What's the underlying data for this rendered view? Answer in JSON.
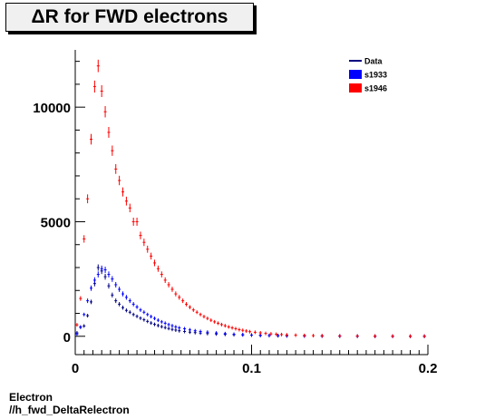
{
  "chart_data": {
    "type": "scatter",
    "title": "ΔR for FWD electrons",
    "xlabel": "",
    "ylabel": "",
    "xlim": [
      0,
      0.2
    ],
    "ylim": [
      -800,
      12500
    ],
    "x_ticks": [
      {
        "value": 0,
        "label": "0"
      },
      {
        "value": 0.1,
        "label": "0.1"
      },
      {
        "value": 0.2,
        "label": "0.2"
      }
    ],
    "y_ticks": [
      {
        "value": 0,
        "label": "0"
      },
      {
        "value": 5000,
        "label": "5000"
      },
      {
        "value": 10000,
        "label": "10000"
      }
    ],
    "legend": {
      "placement": "top-right",
      "entries": [
        {
          "label": "Data",
          "color": "#000080",
          "style": "line"
        },
        {
          "label": "s1933",
          "color": "#0000ff",
          "style": "box"
        },
        {
          "label": "s1946",
          "color": "#ff0000",
          "style": "box"
        }
      ]
    },
    "series": [
      {
        "name": "Data",
        "color": "#000080",
        "points": [
          [
            0.001,
            150
          ],
          [
            0.003,
            400
          ],
          [
            0.005,
            450
          ],
          [
            0.007,
            900
          ],
          [
            0.009,
            1500
          ],
          [
            0.011,
            2300
          ],
          [
            0.013,
            3000
          ],
          [
            0.015,
            2850
          ],
          [
            0.017,
            2600
          ],
          [
            0.019,
            2200
          ],
          [
            0.021,
            1800
          ],
          [
            0.023,
            1550
          ],
          [
            0.025,
            1400
          ],
          [
            0.027,
            1250
          ],
          [
            0.029,
            1130
          ],
          [
            0.031,
            1050
          ],
          [
            0.033,
            950
          ],
          [
            0.035,
            870
          ],
          [
            0.037,
            790
          ],
          [
            0.039,
            720
          ],
          [
            0.041,
            650
          ],
          [
            0.043,
            580
          ],
          [
            0.045,
            520
          ],
          [
            0.047,
            470
          ],
          [
            0.049,
            420
          ],
          [
            0.051,
            380
          ],
          [
            0.053,
            340
          ],
          [
            0.055,
            300
          ],
          [
            0.057,
            270
          ],
          [
            0.059,
            240
          ],
          [
            0.062,
            210
          ],
          [
            0.065,
            180
          ],
          [
            0.068,
            160
          ],
          [
            0.071,
            140
          ],
          [
            0.075,
            120
          ],
          [
            0.08,
            100
          ],
          [
            0.085,
            85
          ],
          [
            0.09,
            70
          ],
          [
            0.095,
            60
          ],
          [
            0.1,
            50
          ],
          [
            0.105,
            40
          ],
          [
            0.11,
            32
          ],
          [
            0.115,
            26
          ],
          [
            0.12,
            20
          ],
          [
            0.13,
            15
          ],
          [
            0.14,
            10
          ],
          [
            0.15,
            8
          ],
          [
            0.16,
            6
          ],
          [
            0.17,
            4
          ],
          [
            0.18,
            3
          ],
          [
            0.19,
            2
          ],
          [
            0.198,
            2
          ]
        ]
      },
      {
        "name": "s1933",
        "color": "#0000ff",
        "points": [
          [
            0.001,
            100
          ],
          [
            0.003,
            400
          ],
          [
            0.005,
            950
          ],
          [
            0.007,
            1550
          ],
          [
            0.009,
            2100
          ],
          [
            0.011,
            2450
          ],
          [
            0.013,
            2700
          ],
          [
            0.015,
            2950
          ],
          [
            0.017,
            2900
          ],
          [
            0.019,
            2700
          ],
          [
            0.021,
            2500
          ],
          [
            0.023,
            2250
          ],
          [
            0.025,
            2050
          ],
          [
            0.027,
            1850
          ],
          [
            0.029,
            1700
          ],
          [
            0.031,
            1550
          ],
          [
            0.033,
            1400
          ],
          [
            0.035,
            1280
          ],
          [
            0.037,
            1150
          ],
          [
            0.039,
            1050
          ],
          [
            0.041,
            950
          ],
          [
            0.043,
            860
          ],
          [
            0.045,
            780
          ],
          [
            0.047,
            700
          ],
          [
            0.049,
            630
          ],
          [
            0.051,
            570
          ],
          [
            0.053,
            510
          ],
          [
            0.055,
            460
          ],
          [
            0.057,
            410
          ],
          [
            0.059,
            370
          ],
          [
            0.062,
            330
          ],
          [
            0.065,
            280
          ],
          [
            0.068,
            240
          ],
          [
            0.071,
            210
          ],
          [
            0.075,
            180
          ],
          [
            0.08,
            145
          ],
          [
            0.085,
            115
          ],
          [
            0.09,
            90
          ],
          [
            0.095,
            70
          ],
          [
            0.1,
            55
          ],
          [
            0.105,
            45
          ],
          [
            0.11,
            36
          ],
          [
            0.115,
            28
          ],
          [
            0.12,
            22
          ],
          [
            0.13,
            16
          ],
          [
            0.14,
            11
          ],
          [
            0.15,
            8
          ],
          [
            0.16,
            6
          ],
          [
            0.17,
            4
          ],
          [
            0.18,
            3
          ],
          [
            0.19,
            2
          ],
          [
            0.198,
            2
          ]
        ]
      },
      {
        "name": "s1946",
        "color": "#ff0000",
        "points": [
          [
            0.001,
            500
          ],
          [
            0.003,
            1650
          ],
          [
            0.005,
            4250
          ],
          [
            0.007,
            6000
          ],
          [
            0.009,
            8600
          ],
          [
            0.011,
            10900
          ],
          [
            0.013,
            11800
          ],
          [
            0.015,
            10700
          ],
          [
            0.017,
            9800
          ],
          [
            0.019,
            8900
          ],
          [
            0.021,
            8100
          ],
          [
            0.023,
            7300
          ],
          [
            0.025,
            6800
          ],
          [
            0.027,
            6300
          ],
          [
            0.029,
            5900
          ],
          [
            0.031,
            5600
          ],
          [
            0.033,
            5000
          ],
          [
            0.035,
            5000
          ],
          [
            0.037,
            4400
          ],
          [
            0.039,
            4100
          ],
          [
            0.041,
            3800
          ],
          [
            0.043,
            3500
          ],
          [
            0.045,
            3200
          ],
          [
            0.047,
            2950
          ],
          [
            0.049,
            2700
          ],
          [
            0.051,
            2450
          ],
          [
            0.053,
            2250
          ],
          [
            0.055,
            2050
          ],
          [
            0.057,
            1850
          ],
          [
            0.059,
            1700
          ],
          [
            0.061,
            1550
          ],
          [
            0.063,
            1400
          ],
          [
            0.065,
            1270
          ],
          [
            0.067,
            1150
          ],
          [
            0.069,
            1050
          ],
          [
            0.071,
            950
          ],
          [
            0.073,
            860
          ],
          [
            0.075,
            780
          ],
          [
            0.077,
            700
          ],
          [
            0.079,
            630
          ],
          [
            0.081,
            570
          ],
          [
            0.083,
            510
          ],
          [
            0.085,
            460
          ],
          [
            0.087,
            410
          ],
          [
            0.089,
            370
          ],
          [
            0.091,
            330
          ],
          [
            0.093,
            290
          ],
          [
            0.095,
            260
          ],
          [
            0.097,
            230
          ],
          [
            0.099,
            200
          ],
          [
            0.102,
            175
          ],
          [
            0.105,
            150
          ],
          [
            0.108,
            125
          ],
          [
            0.111,
            105
          ],
          [
            0.114,
            90
          ],
          [
            0.117,
            75
          ],
          [
            0.12,
            62
          ],
          [
            0.125,
            48
          ],
          [
            0.13,
            36
          ],
          [
            0.135,
            28
          ],
          [
            0.14,
            22
          ],
          [
            0.15,
            15
          ],
          [
            0.16,
            10
          ],
          [
            0.17,
            7
          ],
          [
            0.18,
            5
          ],
          [
            0.19,
            3
          ],
          [
            0.198,
            2
          ]
        ]
      }
    ]
  },
  "captions": {
    "line1": "Electron",
    "line2": "//h_fwd_DeltaRelectron"
  }
}
